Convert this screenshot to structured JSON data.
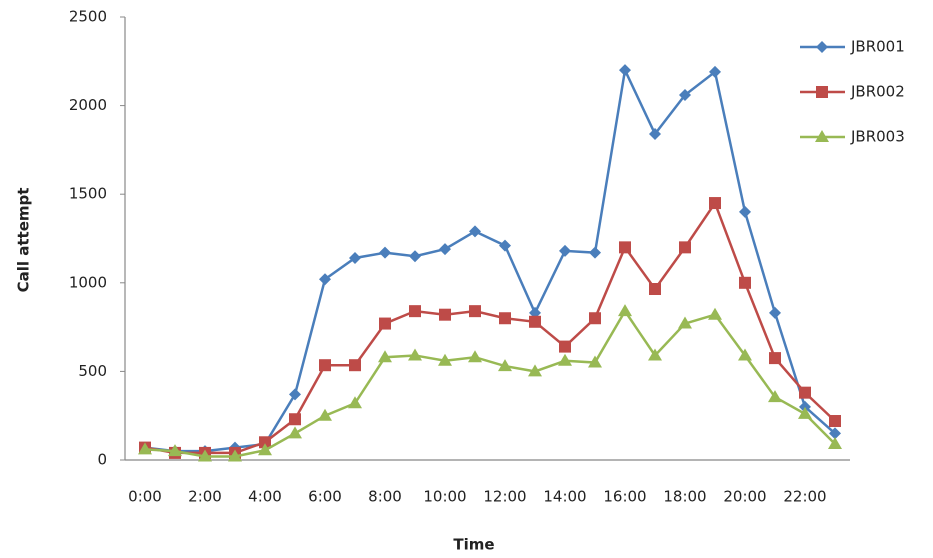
{
  "chart_data": {
    "type": "line",
    "x_label": "Time",
    "y_label": "Call attempt",
    "categories": [
      "0:00",
      null,
      "2:00",
      null,
      "4:00",
      null,
      "6:00",
      null,
      "8:00",
      null,
      "10:00",
      null,
      "12:00",
      null,
      "14:00",
      null,
      "16:00",
      null,
      "18:00",
      null,
      "20:00",
      null,
      "22:00",
      null
    ],
    "series": [
      {
        "name": "JBR001",
        "color": "#4a7ebb",
        "marker": "diamond",
        "values": [
          70,
          50,
          50,
          70,
          90,
          370,
          1020,
          1140,
          1170,
          1150,
          1190,
          1290,
          1210,
          830,
          1180,
          1170,
          2200,
          1840,
          2060,
          2190,
          1400,
          830,
          300,
          150
        ]
      },
      {
        "name": "JBR002",
        "color": "#be4b48",
        "marker": "square",
        "values": [
          70,
          40,
          40,
          40,
          100,
          230,
          535,
          535,
          770,
          840,
          820,
          840,
          800,
          780,
          640,
          800,
          1200,
          965,
          1200,
          1450,
          1000,
          575,
          380,
          220
        ]
      },
      {
        "name": "JBR003",
        "color": "#98b954",
        "marker": "triangle",
        "values": [
          60,
          50,
          20,
          20,
          55,
          150,
          250,
          320,
          580,
          590,
          560,
          580,
          530,
          500,
          560,
          550,
          840,
          590,
          770,
          820,
          590,
          355,
          260,
          90
        ]
      }
    ],
    "ylim": [
      0,
      2500
    ],
    "yticks": [
      0,
      500,
      1000,
      1500,
      2000,
      2500
    ],
    "grid": false,
    "legend": "right"
  }
}
